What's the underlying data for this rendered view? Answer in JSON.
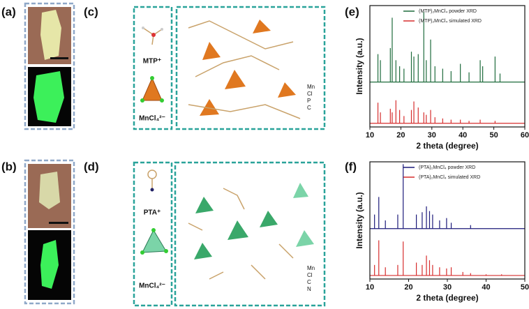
{
  "panel_labels": [
    "(a)",
    "(b)",
    "(c)",
    "(d)",
    "(e)",
    "(f)"
  ],
  "structures": [
    {
      "cation": "MTP⁺",
      "anion": "MnCl₄²⁻",
      "elements": [
        "Mn",
        "Cl",
        "P",
        "C"
      ]
    },
    {
      "cation": "PTA⁺",
      "anion": "MnCl₄²⁻",
      "elements": [
        "Mn",
        "Cl",
        "C",
        "N"
      ]
    }
  ],
  "chart_data": [
    {
      "type": "xrd",
      "x_label": "2 theta (degree)",
      "y_label": "Intensity (a.u.)",
      "xlim": [
        10,
        60
      ],
      "xticks": [
        10,
        20,
        30,
        40,
        50,
        60
      ],
      "ylim": [
        0,
        100
      ],
      "series": [
        {
          "name": "(MTP)₂MnCl₄ powder XRD",
          "color": "#1e6b3c",
          "baseline": 37,
          "x": [
            12.6,
            13.4,
            16.6,
            17.2,
            18.4,
            19.6,
            21,
            23.4,
            24.2,
            25.6,
            27.4,
            28.2,
            29.6,
            31,
            33.5,
            36.2,
            39.2,
            42,
            45.6,
            46.4,
            50.4,
            52
          ],
          "values": [
            60,
            55,
            65,
            90,
            55,
            50,
            48,
            62,
            58,
            60,
            95,
            55,
            72,
            50,
            48,
            46,
            52,
            45,
            55,
            50,
            58,
            44
          ]
        },
        {
          "name": "(MTP)₂MnCl₄ simulated XRD",
          "color": "#d62d2d",
          "baseline": 3,
          "x": [
            12.6,
            13.4,
            16.6,
            17.2,
            18.4,
            19.6,
            21,
            23.4,
            24.2,
            25.6,
            27.4,
            28.2,
            29.6,
            31,
            33.5,
            36.2,
            39.2,
            42,
            45.6,
            50.4
          ],
          "values": [
            20,
            12,
            15,
            12,
            22,
            14,
            9,
            14,
            21,
            16,
            12,
            10,
            14,
            8,
            7,
            6,
            6,
            5,
            6,
            5
          ]
        }
      ]
    },
    {
      "type": "xrd",
      "x_label": "2 theta (degree)",
      "y_label": "Intensity (a.u.)",
      "xlim": [
        10,
        50
      ],
      "xticks": [
        10,
        20,
        30,
        40,
        50
      ],
      "ylim": [
        0,
        100
      ],
      "series": [
        {
          "name": "(PTA)₂MnCl₄ powder XRD",
          "color": "#1c1a7a",
          "baseline": 43,
          "x": [
            11.2,
            12.3,
            14,
            17.2,
            18.6,
            22,
            23.5,
            24.6,
            25.4,
            26.2,
            28,
            29.8,
            31,
            36
          ],
          "values": [
            55,
            70,
            50,
            55,
            98,
            55,
            57,
            62,
            58,
            55,
            50,
            52,
            48,
            46
          ]
        },
        {
          "name": "(PTA)₂MnCl₄ simulated XRD",
          "color": "#d62d2d",
          "baseline": 3,
          "x": [
            11.2,
            12.3,
            14,
            17.2,
            18.6,
            22,
            23.5,
            24.6,
            25.4,
            26.2,
            28,
            29.8,
            31,
            34,
            36,
            40,
            44
          ],
          "values": [
            12,
            33,
            10,
            12,
            32,
            14,
            12,
            20,
            16,
            12,
            10,
            9,
            10,
            6,
            5,
            4,
            4
          ]
        }
      ]
    }
  ]
}
